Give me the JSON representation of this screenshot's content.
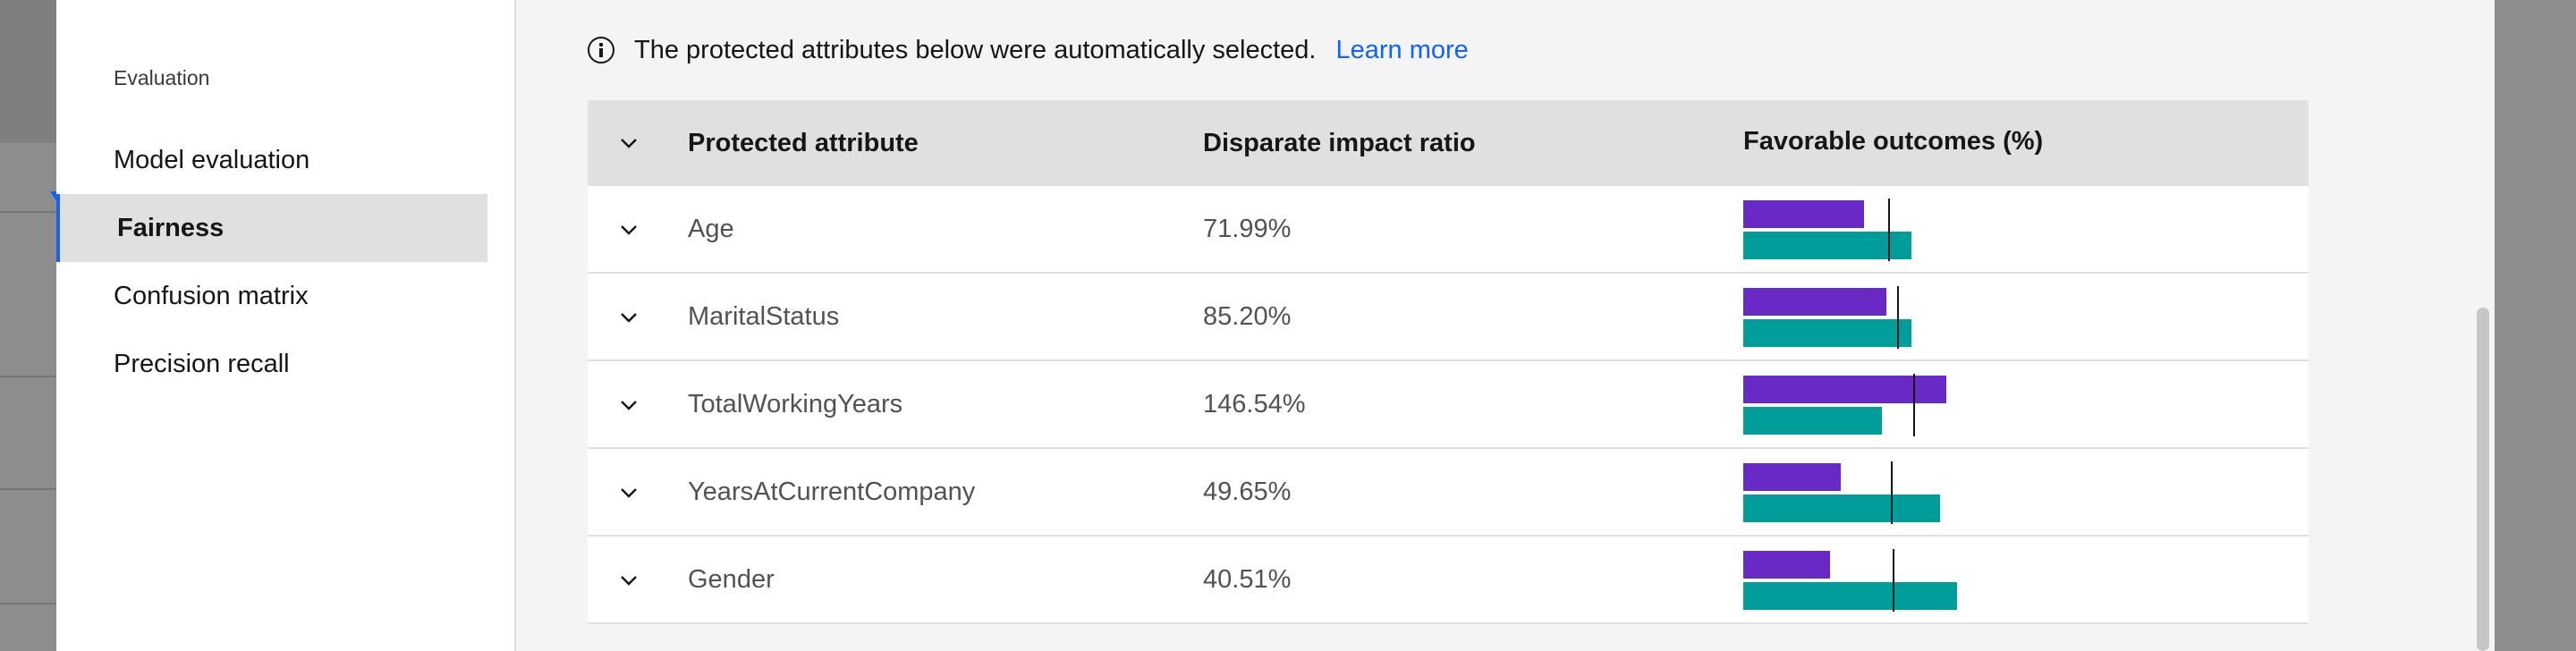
{
  "sidebar": {
    "heading": "Evaluation",
    "items": [
      {
        "label": "Model evaluation",
        "active": false
      },
      {
        "label": "Fairness",
        "active": true
      },
      {
        "label": "Confusion matrix",
        "active": false
      },
      {
        "label": "Precision recall",
        "active": false
      }
    ]
  },
  "notice": {
    "icon": "info-icon",
    "text": "The protected attributes below were automatically selected.",
    "link": "Learn more"
  },
  "table": {
    "headers": [
      "Protected attribute",
      "Disparate impact ratio",
      "Favorable outcomes (%)"
    ],
    "rows": [
      {
        "attribute": "Age",
        "ratio": "71.99%",
        "monitored": 0.58,
        "reference": 0.81,
        "threshold": 0.7
      },
      {
        "attribute": "MaritalStatus",
        "ratio": "85.20%",
        "monitored": 0.69,
        "reference": 0.81,
        "threshold": 0.74
      },
      {
        "attribute": "TotalWorkingYears",
        "ratio": "146.54%",
        "monitored": 0.98,
        "reference": 0.67,
        "threshold": 0.82
      },
      {
        "attribute": "YearsAtCurrentCompany",
        "ratio": "49.65%",
        "monitored": 0.47,
        "reference": 0.95,
        "threshold": 0.71
      },
      {
        "attribute": "Gender",
        "ratio": "40.51%",
        "monitored": 0.42,
        "reference": 1.03,
        "threshold": 0.72
      }
    ]
  },
  "colors": {
    "monitored": "#6929c4",
    "reference": "#009d9a",
    "accent": "#0f62fe"
  }
}
